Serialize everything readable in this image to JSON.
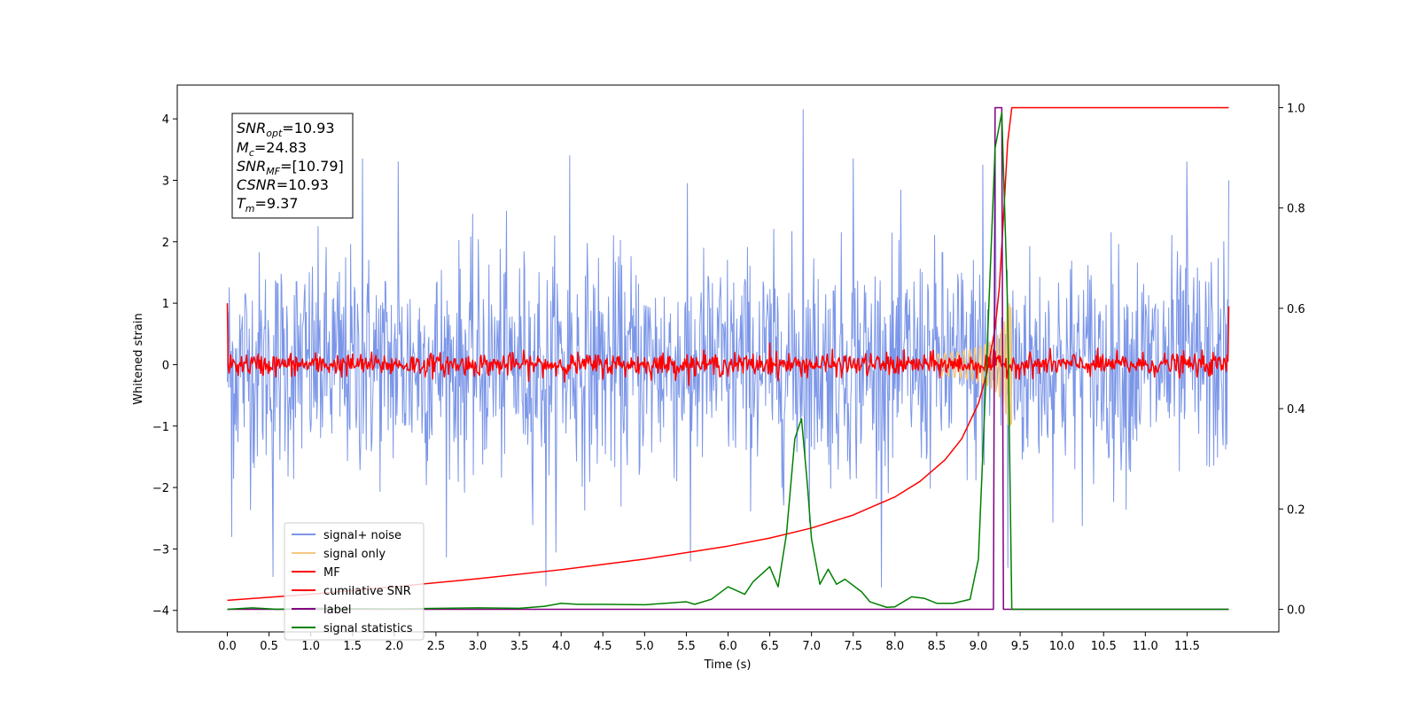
{
  "chart_data": {
    "type": "line",
    "xlabel": "Time (s)",
    "ylabel": "Whitened strain",
    "xlim": [
      -0.6,
      12.6
    ],
    "ylim": [
      -4.35,
      4.55
    ],
    "y2lim": [
      -0.045,
      1.045
    ],
    "grid": false,
    "legend_position": "lower-left",
    "x_ticks": [
      "0.0",
      "0.5",
      "1.0",
      "1.5",
      "2.0",
      "2.5",
      "3.0",
      "3.5",
      "4.0",
      "4.5",
      "5.0",
      "5.5",
      "6.0",
      "6.5",
      "7.0",
      "7.5",
      "8.0",
      "8.5",
      "9.0",
      "9.5",
      "10.0",
      "10.5",
      "11.0",
      "11.5"
    ],
    "y_ticks": [
      "4",
      "3",
      "2",
      "1",
      "0",
      "−1",
      "−2",
      "−3",
      "−4"
    ],
    "y2_ticks": [
      "1.0",
      "0.8",
      "0.6",
      "0.4",
      "0.2",
      "0.0"
    ],
    "annotations": {
      "snr_opt": {
        "name": "SNR",
        "sub": "opt",
        "value": "=10.93"
      },
      "mc": {
        "name": "M",
        "sub": "c",
        "value": "=24.83"
      },
      "snr_mf": {
        "name": "SNR",
        "sub": "MF",
        "value": "=[10.79]"
      },
      "csnr": {
        "name": "CSNR",
        "value": "=10.93"
      },
      "tm": {
        "name": "T",
        "sub": "m",
        "value": "=9.37"
      }
    },
    "series": [
      {
        "name": "signal+ noise",
        "color": "#7b96e8",
        "axis": "left",
        "kind": "noise",
        "std": 0.9,
        "x_range": [
          0,
          12
        ],
        "peaks": [
          [
            0.05,
            -2.8
          ],
          [
            0.55,
            -3.45
          ],
          [
            1.62,
            3.35
          ],
          [
            2.05,
            3.3
          ],
          [
            3.82,
            -3.6
          ],
          [
            4.1,
            3.4
          ],
          [
            5.55,
            -3.2
          ],
          [
            6.9,
            4.15
          ],
          [
            7.5,
            3.35
          ],
          [
            9.05,
            3.25
          ],
          [
            9.2,
            3.55
          ],
          [
            9.35,
            -3.3
          ],
          [
            11.5,
            3.3
          ],
          [
            12.0,
            3.0
          ]
        ]
      },
      {
        "name": "signal only",
        "color": "#f5c880",
        "axis": "left",
        "kind": "chirp",
        "x_range": [
          8.5,
          9.4
        ],
        "peak_amp": 1.0
      },
      {
        "name": "MF",
        "color": "#ff0000",
        "axis": "left",
        "kind": "mf",
        "std": 0.09,
        "x_range": [
          0,
          12
        ],
        "peaks": [
          [
            0.0,
            1.0
          ],
          [
            12.0,
            0.95
          ],
          [
            6.5,
            0.35
          ]
        ]
      },
      {
        "name": "cumilative SNR",
        "color": "#ff0000",
        "axis": "right",
        "kind": "curve",
        "x": [
          0,
          1,
          2,
          3,
          4,
          5,
          6,
          6.5,
          7,
          7.5,
          8,
          8.3,
          8.6,
          8.8,
          9.0,
          9.1,
          9.2,
          9.25,
          9.3,
          9.35,
          9.4,
          12.0
        ],
        "y": [
          0.018,
          0.03,
          0.045,
          0.061,
          0.079,
          0.1,
          0.126,
          0.142,
          0.162,
          0.188,
          0.224,
          0.255,
          0.298,
          0.34,
          0.41,
          0.47,
          0.56,
          0.64,
          0.78,
          0.93,
          1.0,
          1.0
        ]
      },
      {
        "name": "label",
        "color": "#800080",
        "axis": "right",
        "kind": "curve",
        "x": [
          0,
          9.18,
          9.2,
          9.28,
          9.3,
          12.0
        ],
        "y": [
          0,
          0,
          1,
          1,
          0,
          0
        ]
      },
      {
        "name": "signal statistics",
        "color": "#008000",
        "axis": "right",
        "kind": "curve",
        "x": [
          0,
          0.3,
          0.6,
          1.0,
          2.0,
          3.0,
          3.5,
          3.8,
          4.0,
          4.2,
          4.5,
          5.0,
          5.5,
          5.6,
          5.8,
          6.0,
          6.2,
          6.3,
          6.5,
          6.6,
          6.7,
          6.8,
          6.88,
          6.95,
          7.0,
          7.1,
          7.2,
          7.3,
          7.4,
          7.6,
          7.7,
          7.9,
          8.0,
          8.2,
          8.35,
          8.5,
          8.7,
          8.9,
          9.0,
          9.1,
          9.2,
          9.28,
          9.35,
          9.4,
          10.0,
          11.0,
          12.0
        ],
        "y": [
          0,
          0.003,
          0.0,
          0.002,
          0.001,
          0.003,
          0.002,
          0.006,
          0.012,
          0.01,
          0.01,
          0.009,
          0.015,
          0.01,
          0.02,
          0.045,
          0.03,
          0.055,
          0.085,
          0.045,
          0.15,
          0.34,
          0.38,
          0.25,
          0.14,
          0.05,
          0.08,
          0.05,
          0.06,
          0.035,
          0.015,
          0.004,
          0.005,
          0.025,
          0.022,
          0.012,
          0.012,
          0.02,
          0.1,
          0.5,
          0.92,
          0.99,
          0.6,
          0.0,
          0.0,
          0.0,
          0.0
        ]
      }
    ]
  }
}
